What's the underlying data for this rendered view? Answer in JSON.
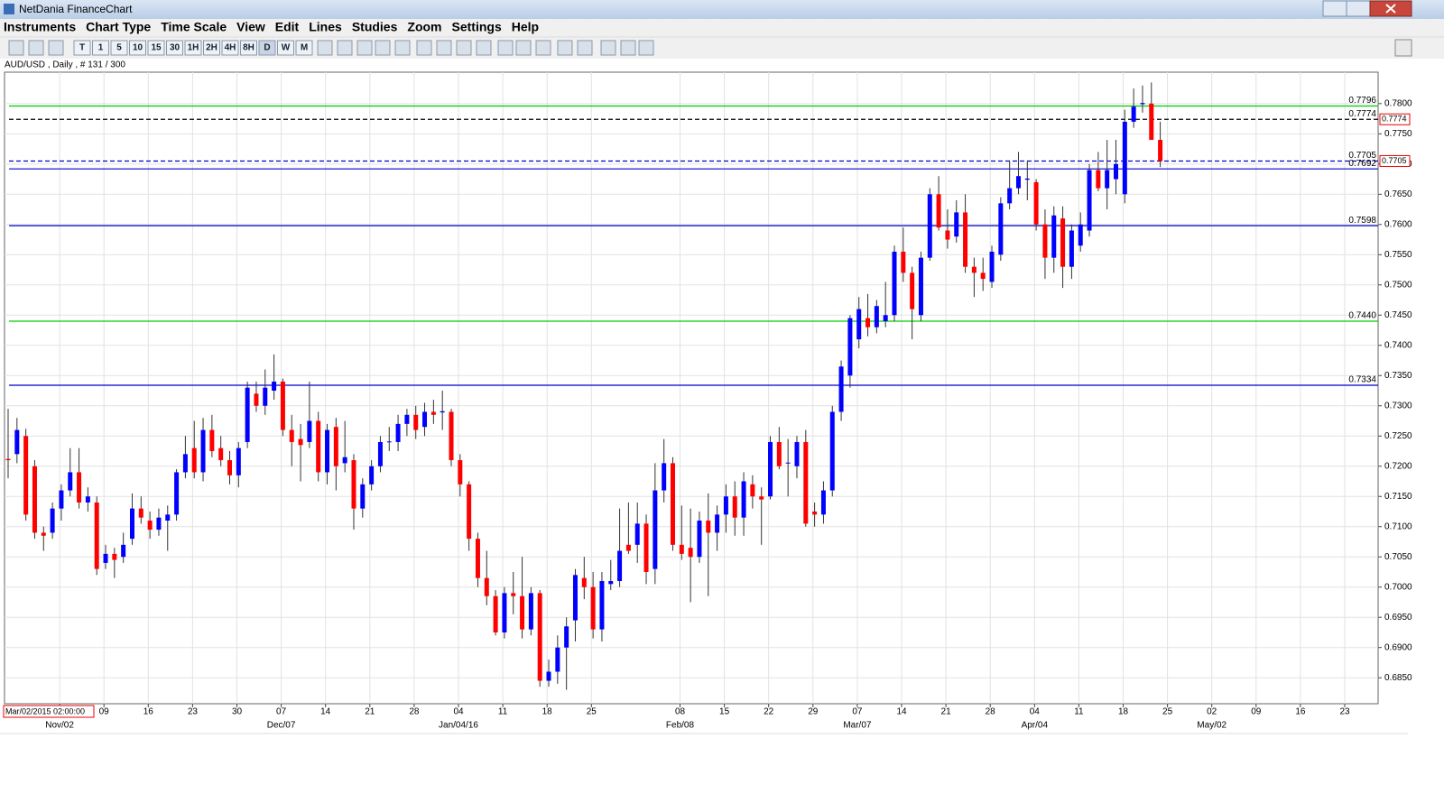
{
  "window": {
    "title": "NetDania FinanceChart"
  },
  "menu": [
    "Instruments",
    "Chart Type",
    "Time Scale",
    "View",
    "Edit",
    "Lines",
    "Studies",
    "Zoom",
    "Settings",
    "Help"
  ],
  "toolbar": [
    "T",
    "1",
    "5",
    "10",
    "15",
    "30",
    "1H",
    "2H",
    "4H",
    "8H",
    "D",
    "W",
    "M"
  ],
  "chart_data": {
    "type": "candlestick",
    "title": "AUD/USD , Daily , # 131 / 300",
    "up_color": "#0000ff",
    "down_color": "#ff0000",
    "ylim": [
      0.6807,
      0.7852
    ],
    "yticks": [
      {
        "value": 0.685,
        "label": "0.6850"
      },
      {
        "value": 0.69,
        "label": "0.6900"
      },
      {
        "value": 0.695,
        "label": "0.6950"
      },
      {
        "value": 0.7,
        "label": "0.7000"
      },
      {
        "value": 0.705,
        "label": "0.7050"
      },
      {
        "value": 0.71,
        "label": "0.7100"
      },
      {
        "value": 0.715,
        "label": "0.7150"
      },
      {
        "value": 0.72,
        "label": "0.7200"
      },
      {
        "value": 0.725,
        "label": "0.7250"
      },
      {
        "value": 0.73,
        "label": "0.7300"
      },
      {
        "value": 0.735,
        "label": "0.7350"
      },
      {
        "value": 0.74,
        "label": "0.7400"
      },
      {
        "value": 0.745,
        "label": "0.7450"
      },
      {
        "value": 0.75,
        "label": "0.7500"
      },
      {
        "value": 0.755,
        "label": "0.7550"
      },
      {
        "value": 0.76,
        "label": "0.7600"
      },
      {
        "value": 0.765,
        "label": "0.7650"
      },
      {
        "value": 0.77,
        "label": "0.7700"
      },
      {
        "value": 0.775,
        "label": "0.7750"
      },
      {
        "value": 0.78,
        "label": "0.7800"
      }
    ],
    "grid": true,
    "lines": [
      {
        "value": 0.7796,
        "label": "0.7796",
        "color": "#00cc00",
        "dashed": false
      },
      {
        "value": 0.7774,
        "label": "0.7774",
        "color": "#000000",
        "dashed": true
      },
      {
        "value": 0.7705,
        "label": "0.7705",
        "color": "#0000cc",
        "dashed": true
      },
      {
        "value": 0.7692,
        "label": "0.7692",
        "color": "#0000cc",
        "dashed": false
      },
      {
        "value": 0.7598,
        "label": "0.7598",
        "color": "#0000cc",
        "dashed": false
      },
      {
        "value": 0.744,
        "label": "0.7440",
        "color": "#00cc00",
        "dashed": false
      },
      {
        "value": 0.7334,
        "label": "0.7334",
        "color": "#0000cc",
        "dashed": false
      }
    ],
    "axis_markers": [
      {
        "value": 0.7774,
        "label": "0.7774"
      },
      {
        "value": 0.7705,
        "label": "0.7705"
      }
    ],
    "x_labels": [
      null,
      null,
      "09",
      "16",
      "23",
      "30",
      "07",
      "14",
      "21",
      "28",
      "04",
      "11",
      "18",
      "25",
      null,
      "08",
      "15",
      "22",
      "29",
      "07",
      "14",
      "21",
      "28",
      "04",
      "11",
      "18",
      "25",
      "02",
      "09",
      "16",
      "23"
    ],
    "x_month_labels": [
      null,
      "Nov/02",
      null,
      null,
      null,
      null,
      "Dec/07",
      null,
      null,
      null,
      "Jan/04/16",
      null,
      null,
      null,
      null,
      "Feb/08",
      null,
      null,
      null,
      "Mar/07",
      null,
      null,
      null,
      "Apr/04",
      null,
      null,
      null,
      "May/02",
      null,
      null,
      null
    ],
    "cursor_label": "Mar/02/2015 02:00:00",
    "candles": [
      [
        0.7212,
        0.7295,
        0.718,
        0.721
      ],
      [
        0.722,
        0.728,
        0.7205,
        0.726
      ],
      [
        0.725,
        0.7262,
        0.711,
        0.712
      ],
      [
        0.72,
        0.721,
        0.708,
        0.709
      ],
      [
        0.709,
        0.71,
        0.706,
        0.7085
      ],
      [
        0.709,
        0.714,
        0.708,
        0.713
      ],
      [
        0.713,
        0.717,
        0.711,
        0.716
      ],
      [
        0.716,
        0.723,
        0.715,
        0.719
      ],
      [
        0.719,
        0.723,
        0.713,
        0.714
      ],
      [
        0.714,
        0.7165,
        0.7125,
        0.715
      ],
      [
        0.714,
        0.715,
        0.702,
        0.703
      ],
      [
        0.704,
        0.707,
        0.703,
        0.7055
      ],
      [
        0.7055,
        0.7065,
        0.7015,
        0.7045
      ],
      [
        0.705,
        0.709,
        0.704,
        0.707
      ],
      [
        0.708,
        0.7155,
        0.707,
        0.713
      ],
      [
        0.713,
        0.715,
        0.7105,
        0.7115
      ],
      [
        0.711,
        0.7125,
        0.708,
        0.7095
      ],
      [
        0.7095,
        0.713,
        0.7085,
        0.7115
      ],
      [
        0.711,
        0.7135,
        0.706,
        0.712
      ],
      [
        0.712,
        0.7195,
        0.711,
        0.719
      ],
      [
        0.719,
        0.725,
        0.718,
        0.722
      ],
      [
        0.723,
        0.7275,
        0.718,
        0.719
      ],
      [
        0.719,
        0.728,
        0.7175,
        0.726
      ],
      [
        0.726,
        0.7285,
        0.7215,
        0.7225
      ],
      [
        0.723,
        0.725,
        0.72,
        0.721
      ],
      [
        0.721,
        0.7225,
        0.717,
        0.7185
      ],
      [
        0.7185,
        0.724,
        0.7165,
        0.723
      ],
      [
        0.724,
        0.734,
        0.723,
        0.733
      ],
      [
        0.732,
        0.734,
        0.729,
        0.73
      ],
      [
        0.73,
        0.736,
        0.7285,
        0.733
      ],
      [
        0.7325,
        0.7385,
        0.731,
        0.734
      ],
      [
        0.734,
        0.7345,
        0.725,
        0.726
      ],
      [
        0.726,
        0.7285,
        0.72,
        0.724
      ],
      [
        0.7245,
        0.727,
        0.7175,
        0.7235
      ],
      [
        0.724,
        0.734,
        0.723,
        0.7275
      ],
      [
        0.7275,
        0.729,
        0.7175,
        0.719
      ],
      [
        0.719,
        0.727,
        0.717,
        0.726
      ],
      [
        0.7265,
        0.728,
        0.716,
        0.72
      ],
      [
        0.7205,
        0.7275,
        0.719,
        0.7215
      ],
      [
        0.721,
        0.722,
        0.7095,
        0.713
      ],
      [
        0.713,
        0.718,
        0.7115,
        0.717
      ],
      [
        0.717,
        0.721,
        0.716,
        0.72
      ],
      [
        0.72,
        0.725,
        0.719,
        0.724
      ],
      [
        0.724,
        0.7265,
        0.7225,
        0.7241
      ],
      [
        0.724,
        0.7285,
        0.7225,
        0.727
      ],
      [
        0.727,
        0.7295,
        0.725,
        0.7285
      ],
      [
        0.7285,
        0.73,
        0.7245,
        0.726
      ],
      [
        0.7265,
        0.7305,
        0.725,
        0.729
      ],
      [
        0.729,
        0.731,
        0.727,
        0.7285
      ],
      [
        0.7289,
        0.7325,
        0.726,
        0.7291
      ],
      [
        0.729,
        0.7295,
        0.72,
        0.721
      ],
      [
        0.721,
        0.722,
        0.715,
        0.717
      ],
      [
        0.717,
        0.7175,
        0.706,
        0.708
      ],
      [
        0.708,
        0.709,
        0.7,
        0.7015
      ],
      [
        0.7015,
        0.706,
        0.697,
        0.6985
      ],
      [
        0.6985,
        0.6995,
        0.692,
        0.6925
      ],
      [
        0.6925,
        0.7,
        0.6915,
        0.699
      ],
      [
        0.699,
        0.7025,
        0.6955,
        0.6985
      ],
      [
        0.6985,
        0.705,
        0.6915,
        0.693
      ],
      [
        0.693,
        0.7,
        0.692,
        0.699
      ],
      [
        0.699,
        0.6995,
        0.6835,
        0.6845
      ],
      [
        0.6845,
        0.688,
        0.6835,
        0.686
      ],
      [
        0.686,
        0.692,
        0.684,
        0.69
      ],
      [
        0.69,
        0.695,
        0.683,
        0.6935
      ],
      [
        0.6945,
        0.703,
        0.691,
        0.702
      ],
      [
        0.7015,
        0.705,
        0.698,
        0.7
      ],
      [
        0.7,
        0.7025,
        0.6915,
        0.693
      ],
      [
        0.693,
        0.7025,
        0.691,
        0.701
      ],
      [
        0.7005,
        0.7045,
        0.6995,
        0.701
      ],
      [
        0.701,
        0.713,
        0.7,
        0.706
      ],
      [
        0.707,
        0.714,
        0.7055,
        0.706
      ],
      [
        0.707,
        0.714,
        0.704,
        0.7105
      ],
      [
        0.7105,
        0.712,
        0.7005,
        0.7025
      ],
      [
        0.703,
        0.7205,
        0.7005,
        0.716
      ],
      [
        0.716,
        0.7245,
        0.714,
        0.7205
      ],
      [
        0.7205,
        0.7215,
        0.706,
        0.707
      ],
      [
        0.707,
        0.7135,
        0.7045,
        0.7055
      ],
      [
        0.7065,
        0.713,
        0.6975,
        0.705
      ],
      [
        0.705,
        0.7125,
        0.704,
        0.711
      ],
      [
        0.711,
        0.7155,
        0.6985,
        0.709
      ],
      [
        0.709,
        0.7135,
        0.706,
        0.712
      ],
      [
        0.712,
        0.717,
        0.709,
        0.715
      ],
      [
        0.715,
        0.7175,
        0.7085,
        0.7115
      ],
      [
        0.7115,
        0.719,
        0.7085,
        0.7175
      ],
      [
        0.717,
        0.7185,
        0.713,
        0.715
      ],
      [
        0.715,
        0.7165,
        0.707,
        0.7145
      ],
      [
        0.715,
        0.725,
        0.7145,
        0.724
      ],
      [
        0.724,
        0.7265,
        0.7195,
        0.72
      ],
      [
        0.7205,
        0.7245,
        0.715,
        0.7206
      ],
      [
        0.72,
        0.725,
        0.718,
        0.724
      ],
      [
        0.724,
        0.726,
        0.71,
        0.7105
      ],
      [
        0.7125,
        0.714,
        0.71,
        0.712
      ],
      [
        0.712,
        0.7175,
        0.7105,
        0.716
      ],
      [
        0.716,
        0.73,
        0.715,
        0.729
      ],
      [
        0.729,
        0.7375,
        0.7275,
        0.7365
      ],
      [
        0.735,
        0.745,
        0.733,
        0.7445
      ],
      [
        0.741,
        0.748,
        0.7395,
        0.746
      ],
      [
        0.7445,
        0.7485,
        0.7415,
        0.743
      ],
      [
        0.743,
        0.7475,
        0.742,
        0.7465
      ],
      [
        0.744,
        0.7505,
        0.743,
        0.745
      ],
      [
        0.745,
        0.7565,
        0.744,
        0.7555
      ],
      [
        0.7555,
        0.7595,
        0.7505,
        0.752
      ],
      [
        0.752,
        0.753,
        0.741,
        0.746
      ],
      [
        0.745,
        0.7555,
        0.744,
        0.7545
      ],
      [
        0.7545,
        0.766,
        0.754,
        0.765
      ],
      [
        0.765,
        0.768,
        0.759,
        0.7595
      ],
      [
        0.759,
        0.7625,
        0.756,
        0.7575
      ],
      [
        0.758,
        0.764,
        0.757,
        0.762
      ],
      [
        0.762,
        0.765,
        0.752,
        0.753
      ],
      [
        0.753,
        0.7545,
        0.748,
        0.752
      ],
      [
        0.752,
        0.7545,
        0.749,
        0.751
      ],
      [
        0.7505,
        0.7565,
        0.7495,
        0.7555
      ],
      [
        0.755,
        0.7645,
        0.754,
        0.7635
      ],
      [
        0.7635,
        0.7705,
        0.7625,
        0.766
      ],
      [
        0.766,
        0.772,
        0.765,
        0.768
      ],
      [
        0.7674,
        0.7705,
        0.764,
        0.7676
      ],
      [
        0.767,
        0.7675,
        0.759,
        0.76
      ],
      [
        0.76,
        0.7625,
        0.751,
        0.7545
      ],
      [
        0.7545,
        0.763,
        0.752,
        0.7615
      ],
      [
        0.761,
        0.763,
        0.7495,
        0.753
      ],
      [
        0.753,
        0.76,
        0.751,
        0.759
      ],
      [
        0.7565,
        0.762,
        0.7555,
        0.76
      ],
      [
        0.759,
        0.77,
        0.758,
        0.769
      ],
      [
        0.769,
        0.772,
        0.7655,
        0.766
      ],
      [
        0.766,
        0.774,
        0.7625,
        0.769
      ],
      [
        0.7675,
        0.774,
        0.765,
        0.77
      ],
      [
        0.765,
        0.779,
        0.7635,
        0.777
      ],
      [
        0.777,
        0.7825,
        0.776,
        0.7795
      ],
      [
        0.7799,
        0.783,
        0.7785,
        0.7801
      ],
      [
        0.78,
        0.7835,
        0.774,
        0.774
      ],
      [
        0.774,
        0.777,
        0.7695,
        0.7705
      ]
    ]
  }
}
